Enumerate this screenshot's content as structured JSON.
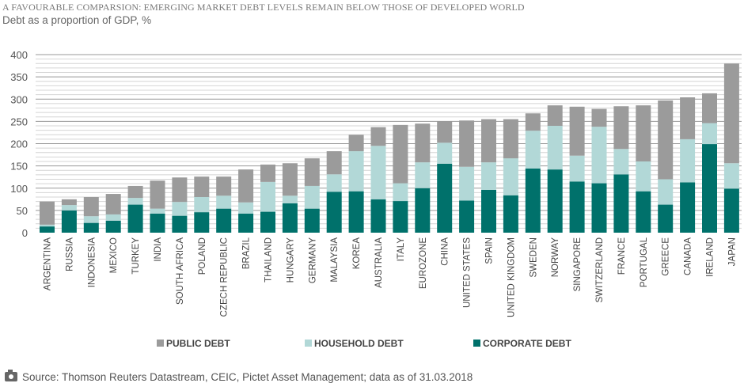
{
  "title": "A FAVOURABLE COMPARSION: EMERGING MARKET DEBT LEVELS REMAIN BELOW THOSE OF DEVELOPED WORLD",
  "subtitle": "Debt as a proportion of GDP, %",
  "source": "Source: Thomson Reuters Datastream, CEIC, Pictet Asset Management; data as of  31.03.2018",
  "chart_data": {
    "type": "bar",
    "stacked": true,
    "ylim": [
      0,
      400
    ],
    "yticks": [
      0,
      50,
      100,
      150,
      200,
      250,
      300,
      350,
      400
    ],
    "grid": true,
    "legend": "bottom",
    "categories": [
      "ARGENTINA",
      "RUSSIA",
      "INDONESIA",
      "MEXICO",
      "TURKEY",
      "INDIA",
      "SOUTH AFRICA",
      "POLAND",
      "CZECH REPUBLIC",
      "BRAZIL",
      "THAILAND",
      "HUNGARY",
      "GERMANY",
      "MALAYSIA",
      "KOREA",
      "AUSTRALIA",
      "ITALY",
      "EUROZONE",
      "CHINA",
      "UNITED STATES",
      "SPAIN",
      "UNITED KINGDOM",
      "SWEDEN",
      "NORWAY",
      "SINGAPORE",
      "SWITZERLAND",
      "FRANCE",
      "PORTUGAL",
      "GREECE",
      "CANADA",
      "IRELAND",
      "JAPAN"
    ],
    "series": [
      {
        "name": "CORPORATE DEBT",
        "color": "#00716b",
        "values": [
          14,
          50,
          22,
          27,
          63,
          43,
          38,
          46,
          54,
          43,
          47,
          66,
          54,
          92,
          93,
          75,
          71,
          100,
          155,
          72,
          96,
          84,
          144,
          142,
          115,
          111,
          131,
          93,
          63,
          113,
          199,
          99
        ]
      },
      {
        "name": "HOUSEHOLD DEBT",
        "color": "#b2d8d7",
        "values": [
          4,
          12,
          15,
          14,
          15,
          11,
          31,
          34,
          29,
          25,
          67,
          17,
          51,
          39,
          90,
          120,
          40,
          58,
          47,
          76,
          62,
          83,
          85,
          98,
          58,
          127,
          57,
          67,
          57,
          97,
          47,
          57
        ]
      },
      {
        "name": "PUBLIC DEBT",
        "color": "#9b9b9b",
        "values": [
          52,
          13,
          43,
          46,
          27,
          63,
          55,
          46,
          43,
          74,
          39,
          73,
          62,
          52,
          37,
          42,
          131,
          87,
          48,
          104,
          97,
          88,
          39,
          46,
          110,
          40,
          96,
          126,
          177,
          94,
          67,
          224
        ]
      }
    ],
    "legend_order": [
      "PUBLIC DEBT",
      "HOUSEHOLD DEBT",
      "CORPORATE DEBT"
    ]
  }
}
